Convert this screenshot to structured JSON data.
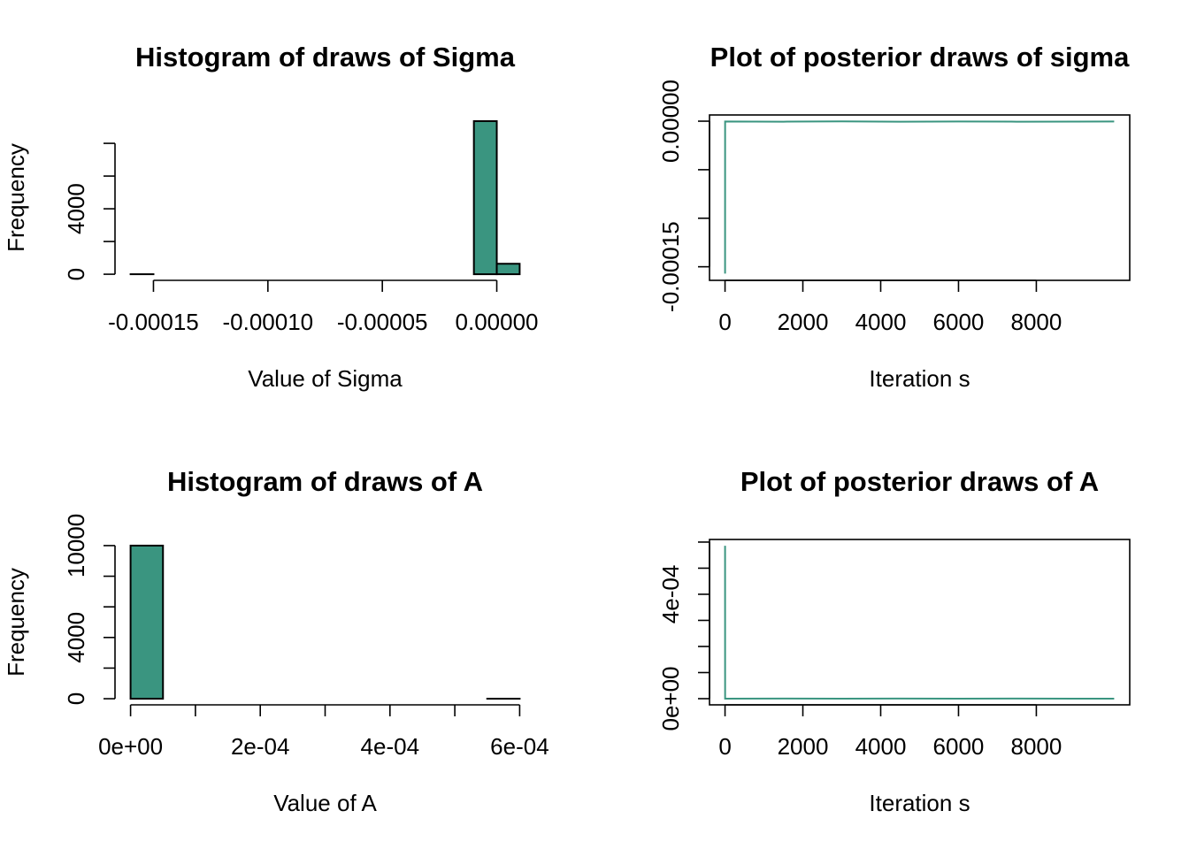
{
  "chart_data": [
    {
      "type": "histogram",
      "title": "Histogram of draws of Sigma",
      "xlabel": "Value of Sigma",
      "ylabel": "Frequency",
      "bins": [
        -0.00016,
        -0.00015,
        -0.00014,
        -0.00013,
        -0.00012,
        -0.00011,
        -0.0001,
        -9e-05,
        -8e-05,
        -7e-05,
        -6e-05,
        -5e-05,
        -4e-05,
        -3e-05,
        -2e-05,
        -1e-05,
        0,
        1e-05
      ],
      "values": [
        1,
        0,
        0,
        0,
        0,
        0,
        0,
        0,
        0,
        0,
        0,
        0,
        0,
        0,
        0,
        9359,
        640
      ],
      "color": "#3a9580",
      "xlim": [
        -0.0001668,
        1.68e-05
      ],
      "xticks": [
        -0.00015,
        {
          "value": -0.0001,
          "label": "-0.00010"
        },
        -5e-05,
        {
          "value": 0,
          "label": "0.00000"
        }
      ],
      "ylim": [
        -374,
        9734
      ],
      "yticks": [
        0,
        {
          "value": 2000,
          "label": null
        },
        4000,
        {
          "value": 6000,
          "label": null
        },
        {
          "value": 8000,
          "label": null
        }
      ],
      "box": false
    },
    {
      "type": "line",
      "title": "Plot of posterior draws of sigma",
      "xlabel": "Iteration s",
      "x": [
        1,
        2,
        1500,
        3000,
        4500,
        6000,
        7500,
        9000,
        10000
      ],
      "values": [
        -0.000157,
        -3e-07,
        -5e-07,
        -2e-07,
        -6e-07,
        -3e-07,
        -5e-07,
        -4e-07,
        -3e-07
      ],
      "color": "#3a9580",
      "xlim": [
        -399,
        10400
      ],
      "xticks": [
        0,
        2000,
        4000,
        6000,
        8000
      ],
      "ylim": [
        -0.000164,
        6.4e-06
      ],
      "yticks": [
        -0.00015,
        {
          "value": -0.0001,
          "label": null
        },
        {
          "value": -5e-05,
          "label": null
        },
        {
          "value": 0,
          "label": "0.00000"
        }
      ],
      "box": true
    },
    {
      "type": "histogram",
      "title": "Histogram of draws of A",
      "xlabel": "Value of A",
      "ylabel": "Frequency",
      "bins": [
        0,
        5e-05,
        0.0001,
        0.00015,
        0.0002,
        0.00025,
        0.0003,
        0.00035,
        0.0004,
        0.00045,
        0.0005,
        0.00055,
        0.0006
      ],
      "values": [
        9999,
        0,
        0,
        0,
        0,
        0,
        0,
        0,
        0,
        0,
        0,
        1
      ],
      "color": "#3a9580",
      "xlim": [
        -2.4e-05,
        0.000624
      ],
      "xticks": [
        {
          "value": 0,
          "label": "0e+00"
        },
        {
          "value": 0.0001,
          "label": null
        },
        {
          "value": 0.0002,
          "label": "2e-04"
        },
        {
          "value": 0.0003,
          "label": null
        },
        {
          "value": 0.0004,
          "label": "4e-04"
        },
        {
          "value": 0.0005,
          "label": null
        },
        {
          "value": 0.0006,
          "label": "6e-04"
        }
      ],
      "ylim": [
        -400,
        10400
      ],
      "yticks": [
        0,
        {
          "value": 2000,
          "label": null
        },
        4000,
        {
          "value": 6000,
          "label": null
        },
        {
          "value": 8000,
          "label": null
        },
        10000
      ],
      "box": false
    },
    {
      "type": "line",
      "title": "Plot of posterior draws of A",
      "xlabel": "Iteration s",
      "x": [
        1,
        2,
        1500,
        3000,
        4400,
        6000,
        7500,
        9000,
        10000
      ],
      "values": [
        0.000586,
        2e-07,
        3e-07,
        2e-07,
        4e-07,
        2e-07,
        3e-07,
        2e-07,
        2e-07
      ],
      "color": "#3a9580",
      "xlim": [
        -399,
        10400
      ],
      "xticks": [
        0,
        2000,
        4000,
        6000,
        8000
      ],
      "ylim": [
        -2.37e-05,
        0.00061
      ],
      "yticks": [
        {
          "value": 0,
          "label": "0e+00"
        },
        {
          "value": 0.0001,
          "label": null
        },
        {
          "value": 0.0002,
          "label": null
        },
        {
          "value": 0.0003,
          "label": null
        },
        {
          "value": 0.0004,
          "label": "4e-04"
        },
        {
          "value": 0.0005,
          "label": null
        },
        {
          "value": 0.0006,
          "label": null
        }
      ],
      "box": true
    }
  ]
}
